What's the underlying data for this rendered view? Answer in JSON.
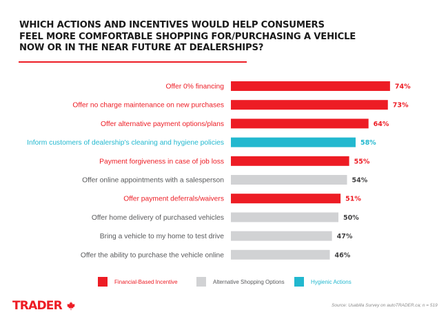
{
  "header": {
    "title_lines": [
      "WHICH ACTIONS AND INCENTIVES WOULD HELP CONSUMERS",
      "FEEL MORE COMFORTABLE SHOPPING FOR/PURCHASING A VEHICLE",
      "NOW OR IN THE NEAR FUTURE AT DEALERSHIPS?"
    ]
  },
  "colors": {
    "financial": "#ed1c24",
    "alternative": "#d1d2d4",
    "hygienic": "#22b8cf",
    "alternative_text": "#58595b",
    "alternative_value_text": "#404041"
  },
  "chart_data": {
    "type": "bar",
    "orientation": "horizontal",
    "title": "WHICH ACTIONS AND INCENTIVES WOULD HELP CONSUMERS FEEL MORE COMFORTABLE SHOPPING FOR/PURCHASING A VEHICLE NOW OR IN THE NEAR FUTURE AT DEALERSHIPS?",
    "xlabel": "",
    "ylabel": "",
    "xlim": [
      0,
      100
    ],
    "grid": false,
    "legend_position": "bottom",
    "value_suffix": "%",
    "categories": [
      "Offer 0% financing",
      "Offer no charge maintenance on new purchases",
      "Offer alternative payment options/plans",
      "Inform customers of dealership's cleaning and hygiene policies",
      "Payment forgiveness in case of job loss",
      "Offer online appointments with a salesperson",
      "Offer payment deferrals/waivers",
      "Offer home delivery of purchased vehicles",
      "Bring a vehicle to my home to test drive",
      "Offer the ability to purchase the vehicle online"
    ],
    "values": [
      74,
      73,
      64,
      58,
      55,
      54,
      51,
      50,
      47,
      46
    ],
    "groups": [
      "financial",
      "financial",
      "financial",
      "hygienic",
      "financial",
      "alternative",
      "financial",
      "alternative",
      "alternative",
      "alternative"
    ],
    "legend": [
      {
        "key": "financial",
        "label": "Financial-Based Incentive"
      },
      {
        "key": "alternative",
        "label": "Alternative Shopping Options"
      },
      {
        "key": "hygienic",
        "label": "Hygienic Actions"
      }
    ]
  },
  "footer": {
    "logo_text": "TRADER",
    "logo_icon": "maple-leaf-icon",
    "source": "Source: Usabilla Survey on autoTRADER.ca; n = 519"
  }
}
